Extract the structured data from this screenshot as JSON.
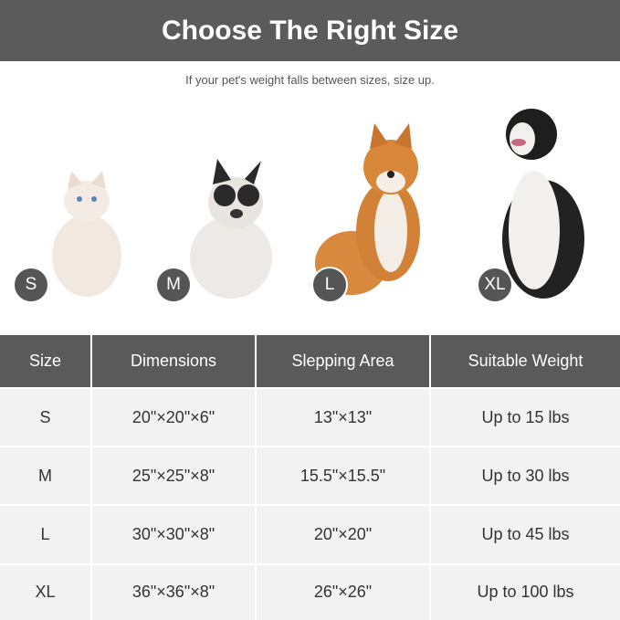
{
  "header": {
    "title": "Choose The Right Size",
    "subtitle": "If your pet's weight falls between sizes, size up."
  },
  "pets": [
    {
      "size": "S",
      "animal": "cat"
    },
    {
      "size": "M",
      "animal": "french-bulldog"
    },
    {
      "size": "L",
      "animal": "shiba-inu"
    },
    {
      "size": "XL",
      "animal": "border-collie"
    }
  ],
  "table": {
    "columns": [
      "Size",
      "Dimensions",
      "Slepping Area",
      "Suitable Weight"
    ],
    "rows": [
      [
        "S",
        "20\"×20\"×6\"",
        "13\"×13\"",
        "Up to 15 lbs"
      ],
      [
        "M",
        "25\"×25\"×8\"",
        "15.5\"×15.5\"",
        "Up to 30 lbs"
      ],
      [
        "L",
        "30\"×30\"×8\"",
        "20\"×20\"",
        "Up to 45 lbs"
      ],
      [
        "XL",
        "36\"×36\"×8\"",
        "26\"×26\"",
        "Up to 100 lbs"
      ]
    ]
  }
}
